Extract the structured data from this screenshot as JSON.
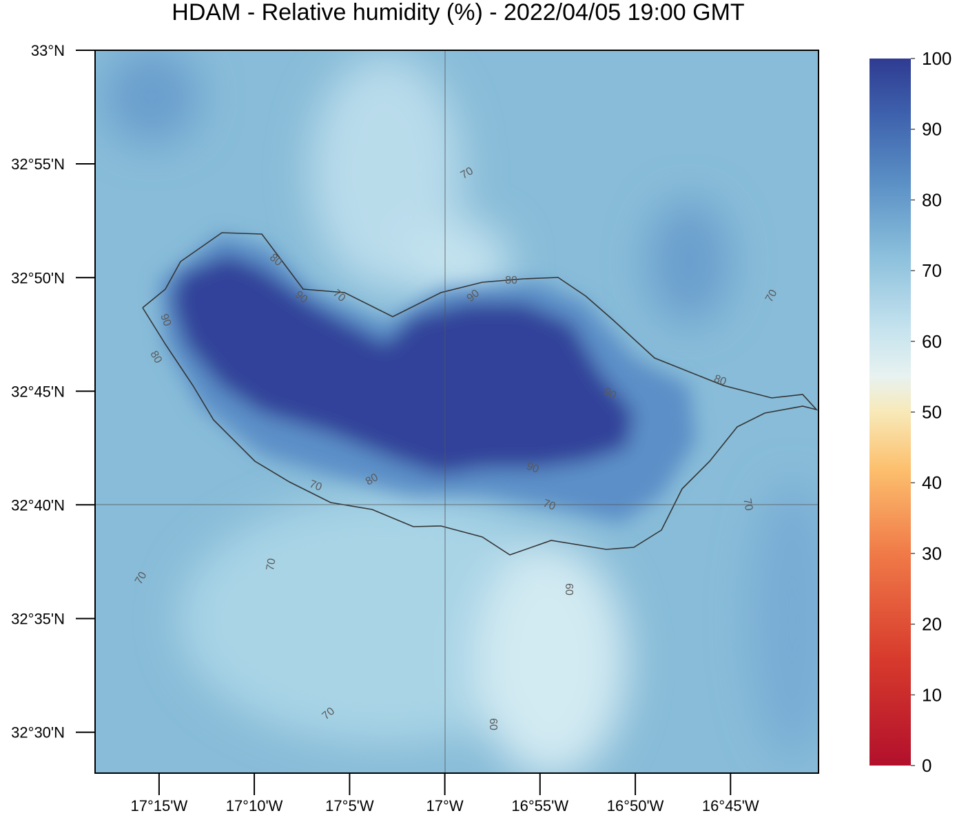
{
  "map": {
    "title": "HDAM - Relative humidity (%)  -  2022/04/05  19:00 GMT",
    "xlim": [
      -17.306,
      -16.673
    ],
    "ylim": [
      32.47,
      33.0
    ],
    "xticks": [
      {
        "value": -17.25,
        "label": "17°15'W"
      },
      {
        "value": -17.1667,
        "label": "17°10'W"
      },
      {
        "value": -17.0833,
        "label": "17°5'W"
      },
      {
        "value": -17.0,
        "label": "17°W"
      },
      {
        "value": -16.9167,
        "label": "16°55'W"
      },
      {
        "value": -16.8333,
        "label": "16°50'W"
      },
      {
        "value": -16.75,
        "label": "16°45'W"
      }
    ],
    "yticks": [
      {
        "value": 33.0,
        "label": "33°N"
      },
      {
        "value": 32.9167,
        "label": "32°55'N"
      },
      {
        "value": 32.8333,
        "label": "32°50'N"
      },
      {
        "value": 32.75,
        "label": "32°45'N"
      },
      {
        "value": 32.6667,
        "label": "32°40'N"
      },
      {
        "value": 32.5833,
        "label": "32°35'N"
      },
      {
        "value": 32.5,
        "label": "32°30'N"
      }
    ],
    "colorbar": {
      "lim": [
        0,
        100
      ],
      "ticks": [
        0,
        10,
        20,
        30,
        40,
        50,
        60,
        70,
        80,
        90,
        100
      ]
    },
    "contour_labels": [
      70,
      80,
      90,
      70,
      90,
      80,
      90,
      80,
      70,
      80,
      90,
      70,
      80,
      90,
      70,
      70,
      70,
      70,
      60,
      70,
      60
    ]
  }
}
